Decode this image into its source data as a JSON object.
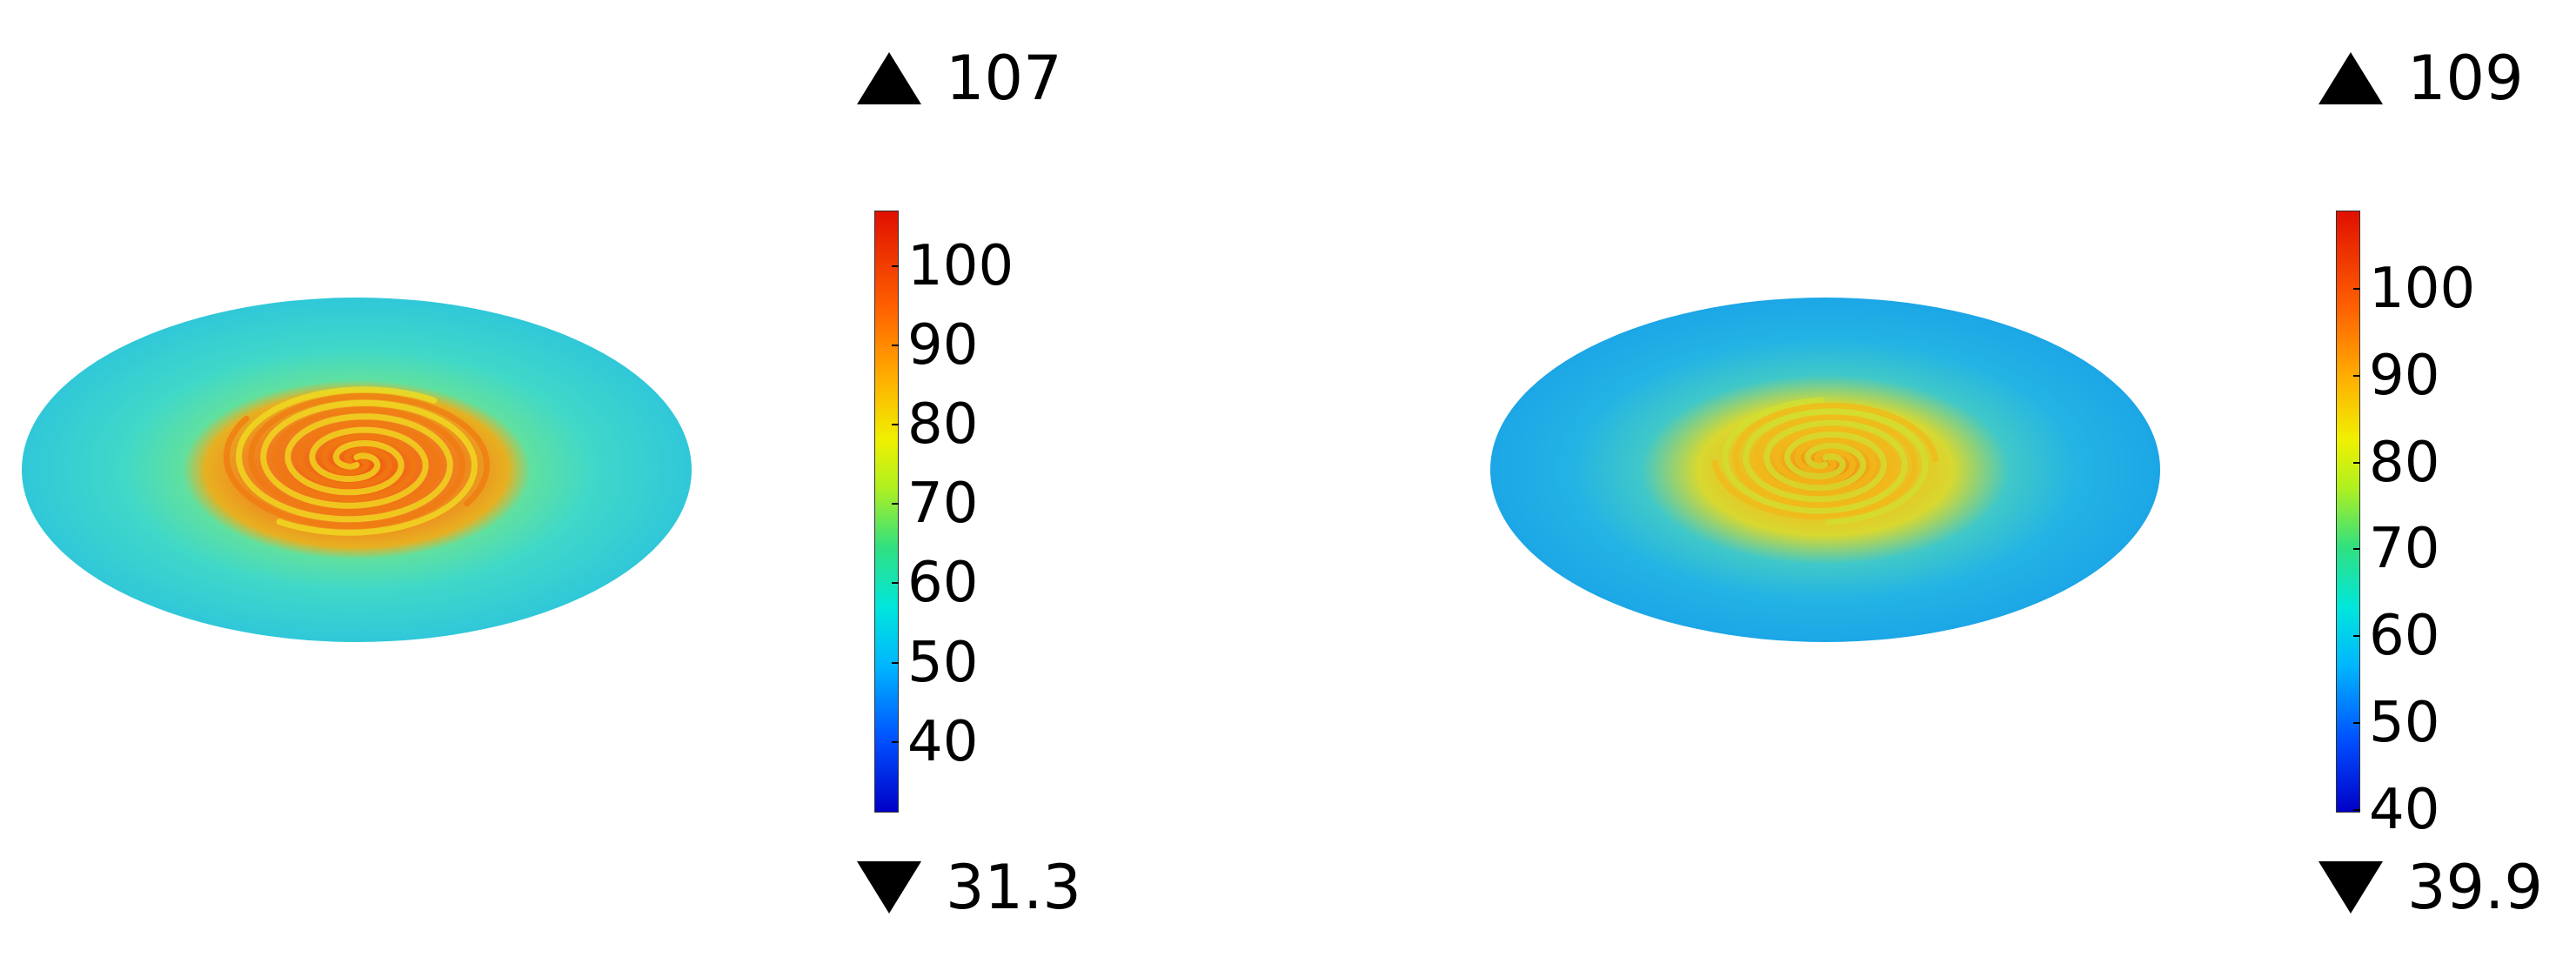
{
  "panels": [
    {
      "max_label": "107",
      "min_label": "31.3",
      "colorbar": {
        "min": 31.3,
        "max": 107,
        "ticks": [
          "100",
          "90",
          "80",
          "70",
          "60",
          "50",
          "40"
        ]
      },
      "surface": {
        "base_color": "#33d6d0",
        "spiral_color": "#f07a10",
        "spiral_highlight": "#f0e020",
        "edge_color": "#2ab8e0"
      }
    },
    {
      "max_label": "109",
      "min_label": "39.9",
      "colorbar": {
        "min": 39.9,
        "max": 109,
        "ticks": [
          "100",
          "90",
          "80",
          "70",
          "60",
          "50",
          "40"
        ]
      },
      "surface": {
        "base_color": "#1fb6e8",
        "spiral_color": "#f2b818",
        "spiral_highlight": "#d0e030",
        "edge_color": "#1a9ee0"
      }
    }
  ]
}
